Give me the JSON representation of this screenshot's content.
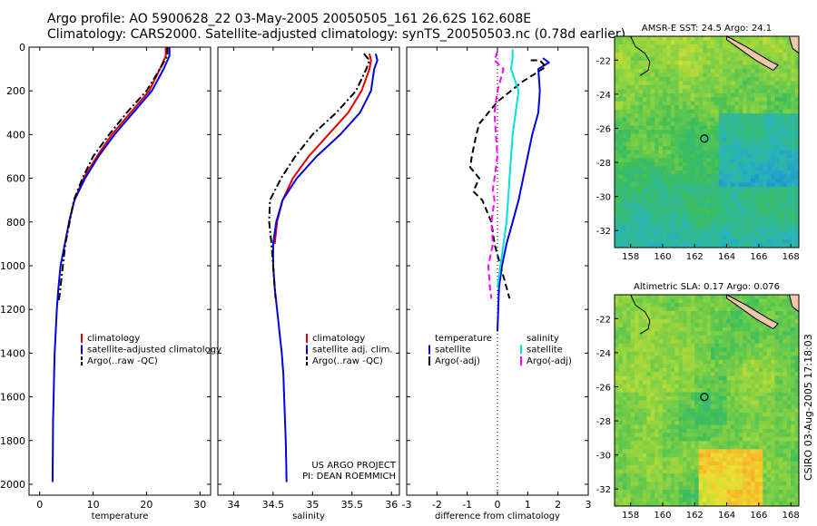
{
  "title_line1": "Argo profile: AO 5900628_22 03-May-2005 20050505_161 26.62S 162.608E",
  "title_line2": "Climatology: CARS2000. Satellite-adjusted climatology: synTS_20050503.nc (0.78d earlier)",
  "side_label": "CSIRO 03-Aug-2005 17:18:03",
  "colors": {
    "climatology": "#e00000",
    "satellite": "#0000e0",
    "argo": "#000000",
    "sal_satellite": "#00e0e0",
    "sal_argo": "#ff00ff"
  },
  "chart_data": [
    {
      "type": "line",
      "xlabel": "temperature",
      "ylabel": "",
      "xlim": [
        -2,
        32
      ],
      "ylim": [
        2050,
        0
      ],
      "y_reversed": true,
      "xticks": [
        0,
        10,
        20,
        30
      ],
      "yticks": [
        0,
        200,
        400,
        600,
        800,
        1000,
        1200,
        1400,
        1600,
        1800,
        2000
      ],
      "legend_position": "lower-right",
      "series": [
        {
          "name": "climatology",
          "color": "#e00000",
          "dash": "solid",
          "x": [
            23.6,
            23.6,
            22.5,
            20.5,
            17.0,
            13.5,
            10.7,
            8.2,
            6.5,
            5.5
          ],
          "y": [
            0,
            40,
            100,
            200,
            300,
            400,
            500,
            600,
            700,
            800
          ]
        },
        {
          "name": "satellite-adjusted climatology",
          "color": "#0000e0",
          "dash": "solid",
          "x": [
            24.3,
            24.3,
            23.2,
            21.0,
            17.5,
            14.0,
            11.0,
            8.5,
            6.5,
            5.5,
            4.7,
            3.9,
            3.5,
            3.2,
            3.0,
            2.8,
            2.7,
            2.6,
            2.5,
            2.45,
            2.4
          ],
          "y": [
            0,
            40,
            100,
            200,
            300,
            400,
            500,
            600,
            700,
            800,
            900,
            1000,
            1100,
            1200,
            1300,
            1400,
            1500,
            1600,
            1700,
            1850,
            1990
          ]
        },
        {
          "name": "Argo(..raw -QC)",
          "color": "#000000",
          "dash": "dash-dot",
          "x": [
            23.9,
            23.9,
            22.5,
            20.0,
            16.3,
            13.0,
            10.0,
            8.0,
            6.4,
            5.6,
            4.8,
            4.1,
            3.6
          ],
          "y": [
            0,
            40,
            100,
            200,
            300,
            400,
            500,
            600,
            700,
            800,
            900,
            1050,
            1160
          ]
        }
      ]
    },
    {
      "type": "line",
      "xlabel": "salinity",
      "ylabel": "",
      "xlim": [
        33.8,
        36.1
      ],
      "ylim": [
        2050,
        0
      ],
      "y_reversed": true,
      "xticks": [
        34,
        34.5,
        35,
        35.5,
        36
      ],
      "xticklabels": [
        "34",
        "34.5",
        "35",
        "35.5",
        "36"
      ],
      "legend_position": "lower-right",
      "annotation_lines": [
        "US ARGO PROJECT",
        "PI: DEAN ROEMMICH"
      ],
      "series": [
        {
          "name": "climatology",
          "color": "#e00000",
          "dash": "solid",
          "x": [
            35.72,
            35.74,
            35.72,
            35.62,
            35.45,
            35.2,
            34.95,
            34.75,
            34.62,
            34.55,
            34.52
          ],
          "y": [
            30,
            60,
            100,
            200,
            300,
            400,
            500,
            600,
            700,
            800,
            900
          ]
        },
        {
          "name": "satellite adj. clim.",
          "color": "#0000e0",
          "dash": "solid",
          "x": [
            35.8,
            35.82,
            35.78,
            35.74,
            35.6,
            35.35,
            35.05,
            34.8,
            34.62,
            34.54,
            34.5,
            34.5,
            34.52,
            34.55,
            34.58,
            34.61,
            34.63,
            34.64,
            34.66,
            34.67
          ],
          "y": [
            30,
            60,
            100,
            200,
            300,
            400,
            500,
            600,
            700,
            800,
            900,
            1000,
            1100,
            1200,
            1300,
            1400,
            1500,
            1600,
            1800,
            1990
          ]
        },
        {
          "name": "Argo(..raw -QC)",
          "color": "#000000",
          "dash": "dash-dot",
          "x": [
            35.65,
            35.72,
            35.68,
            35.55,
            35.3,
            35.0,
            34.78,
            34.6,
            34.46,
            34.45,
            34.48,
            34.5,
            34.53
          ],
          "y": [
            30,
            60,
            100,
            200,
            300,
            400,
            500,
            600,
            700,
            800,
            900,
            1000,
            1150
          ]
        }
      ]
    },
    {
      "type": "line",
      "xlabel": "difference from climatology",
      "ylabel": "",
      "xlim": [
        -3,
        3
      ],
      "ylim": [
        2050,
        0
      ],
      "y_reversed": true,
      "xticks": [
        -3,
        -2,
        -1,
        0,
        1,
        2,
        3
      ],
      "legend_position": "lower",
      "legend_groups": [
        {
          "title": "temperature",
          "items": [
            "satellite",
            "Argo(-adj)"
          ]
        },
        {
          "title": "salinity",
          "items": [
            "satellite",
            "Argo(-adj)"
          ]
        }
      ],
      "series": [
        {
          "name": "satellite",
          "group": "temperature",
          "color": "#0000e0",
          "dash": "solid",
          "x": [
            1.5,
            1.7,
            1.35,
            1.4,
            1.35,
            1.15,
            1.0,
            0.85,
            0.7,
            0.5,
            0.3,
            0.15,
            0.05,
            0.0
          ],
          "y": [
            50,
            70,
            100,
            200,
            300,
            400,
            500,
            600,
            700,
            800,
            900,
            1000,
            1100,
            1300
          ]
        },
        {
          "name": "Argo(-adj)",
          "group": "temperature",
          "color": "#000000",
          "dash": "dashed",
          "x": [
            1.1,
            1.4,
            1.6,
            0.8,
            0.0,
            -0.6,
            -0.7,
            -0.85,
            -0.9,
            -0.6,
            -0.8,
            -0.5,
            -0.2,
            -0.1,
            0.1,
            0.3,
            0.4
          ],
          "y": [
            60,
            60,
            90,
            160,
            250,
            350,
            400,
            500,
            550,
            600,
            660,
            700,
            800,
            900,
            1000,
            1100,
            1150
          ]
        },
        {
          "name": "satellite",
          "group": "salinity",
          "color": "#00e0e0",
          "dash": "solid",
          "x": [
            0.5,
            0.5,
            0.45,
            0.7,
            0.6,
            0.5,
            0.45,
            0.4,
            0.35,
            0.3,
            0.2,
            0.1,
            0.0
          ],
          "y": [
            10,
            50,
            100,
            200,
            300,
            400,
            500,
            600,
            700,
            800,
            900,
            1000,
            1100
          ]
        },
        {
          "name": "Argo(-adj)",
          "group": "salinity",
          "color": "#ff00ff",
          "dash": "dashed",
          "x": [
            0.0,
            -0.1,
            0.2,
            0.0,
            -0.1,
            -0.05,
            0.0,
            -0.1,
            -0.15,
            -0.1,
            -0.2,
            -0.15,
            -0.3,
            -0.25,
            -0.2
          ],
          "y": [
            20,
            60,
            100,
            200,
            300,
            400,
            500,
            600,
            650,
            700,
            800,
            900,
            1000,
            1100,
            1150
          ]
        }
      ]
    },
    {
      "type": "heatmap",
      "title": "AMSR-E SST: 24.5 Argo: 24.1",
      "xlabel": "",
      "ylabel": "",
      "xlim": [
        157,
        168.5
      ],
      "ylim": [
        -33,
        -20.6
      ],
      "xticks": [
        158,
        160,
        162,
        164,
        166,
        168
      ],
      "yticks": [
        -22,
        -24,
        -26,
        -28,
        -30,
        -32
      ],
      "marker": {
        "lon": 162.6,
        "lat": -26.6
      }
    },
    {
      "type": "heatmap",
      "title": "Altimetric SLA: 0.17 Argo: 0.076",
      "xlabel": "",
      "ylabel": "",
      "xlim": [
        157,
        168.5
      ],
      "ylim": [
        -33,
        -20.6
      ],
      "xticks": [
        158,
        160,
        162,
        164,
        166,
        168
      ],
      "yticks": [
        -22,
        -24,
        -26,
        -28,
        -30,
        -32
      ],
      "marker": {
        "lon": 162.6,
        "lat": -26.6
      }
    }
  ]
}
